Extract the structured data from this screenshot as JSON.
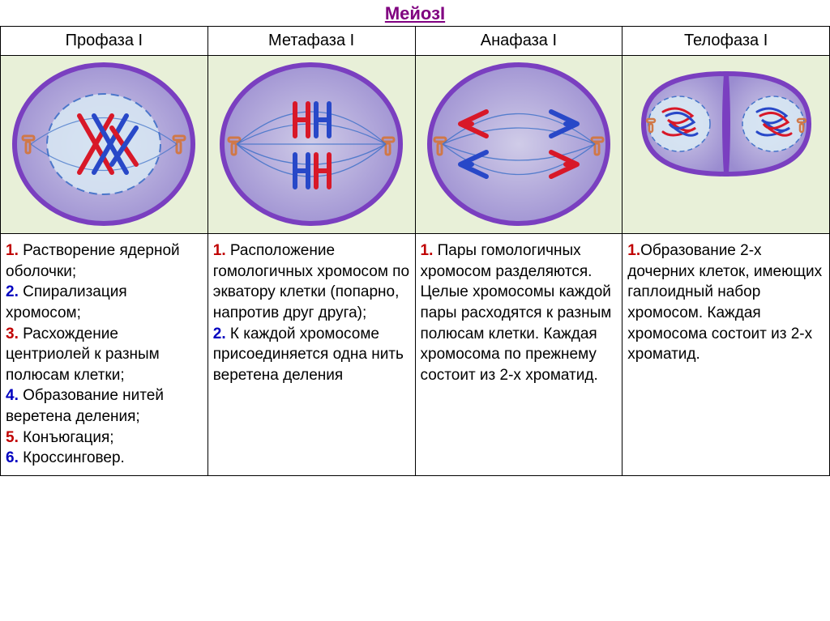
{
  "title": "МейозI",
  "columns": [
    {
      "header": "Профаза I"
    },
    {
      "header": "Метафаза I"
    },
    {
      "header": "Анафаза I"
    },
    {
      "header": "Телофаза I"
    }
  ],
  "colors": {
    "cell_fill": "#b8b0e0",
    "cell_stroke": "#7a3fc0",
    "nucl_fill": "#d8e8f4",
    "spindle": "#3a6fc8",
    "centriole": "#d07848",
    "chrom_red": "#d81828",
    "chrom_blue": "#2848c8",
    "bg_green": "#e8f0d8"
  },
  "descriptions": {
    "prophase": [
      {
        "n": "1.",
        "color": "n1",
        "text": " Растворение ядерной оболочки;"
      },
      {
        "n": "2.",
        "color": "n2",
        "text": " Спирализация хромосом;"
      },
      {
        "n": "3.",
        "color": "n3",
        "text": " Расхождение центриолей к разным полюсам клетки;"
      },
      {
        "n": "4.",
        "color": "n4",
        "text": " Образование нитей веретена деления;"
      },
      {
        "n": "5.",
        "color": "n5",
        "text": " Конъюгация;"
      },
      {
        "n": "6.",
        "color": "n6",
        "text": " Кроссинговер."
      }
    ],
    "metaphase": [
      {
        "n": "1.",
        "color": "n1",
        "text": " Расположение гомологичных хромосом по экватору клетки (попарно, напротив друг друга);"
      },
      {
        "n": "2.",
        "color": "n2",
        "text": " К каждой хромосоме присоединяется одна нить веретена деления"
      }
    ],
    "anaphase": [
      {
        "n": "1.",
        "color": "n1",
        "text": " Пары гомологичных хромосом разделяются. Целые хромосомы каждой пары расходятся к разным полюсам клетки. Каждая хромосома по прежнему состоит из 2-х хроматид."
      }
    ],
    "telophase": [
      {
        "n": "1.",
        "color": "n1",
        "text": "Образование 2-х дочерних клеток, имеющих гаплоидный набор хромосом. Каждая хромосома состоит из 2-х хроматид."
      }
    ]
  }
}
